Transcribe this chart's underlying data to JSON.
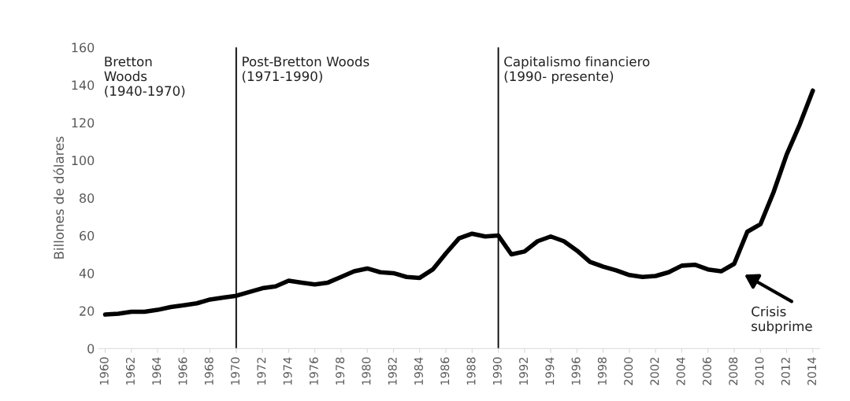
{
  "chart_data": {
    "type": "line",
    "ylabel": "Billones de dólares",
    "x": [
      1960,
      1961,
      1962,
      1963,
      1964,
      1965,
      1966,
      1967,
      1968,
      1969,
      1970,
      1971,
      1972,
      1973,
      1974,
      1975,
      1976,
      1977,
      1978,
      1979,
      1980,
      1981,
      1982,
      1983,
      1984,
      1985,
      1986,
      1987,
      1988,
      1989,
      1990,
      1991,
      1992,
      1993,
      1994,
      1995,
      1996,
      1997,
      1998,
      1999,
      2000,
      2001,
      2002,
      2003,
      2004,
      2005,
      2006,
      2007,
      2008,
      2009,
      2010,
      2011,
      2012,
      2013,
      2014
    ],
    "series": [
      {
        "color": "#000000",
        "values": [
          18,
          18.5,
          19.5,
          19.5,
          20.5,
          22,
          23,
          24,
          26,
          27,
          28,
          30,
          32,
          33,
          36,
          35,
          34,
          35,
          38,
          41,
          42.5,
          40.5,
          40,
          38,
          37.5,
          42,
          50.5,
          58.5,
          61,
          59.5,
          60,
          50,
          51.5,
          57,
          59.5,
          57,
          52,
          46,
          43.5,
          41.5,
          39,
          38,
          38.5,
          40.5,
          44,
          44.5,
          42,
          41,
          45,
          62,
          66,
          83,
          103,
          119,
          137
        ]
      }
    ],
    "xlim": [
      1959.5,
      2014.5
    ],
    "xticks": [
      1960,
      1962,
      1964,
      1966,
      1968,
      1970,
      1972,
      1974,
      1976,
      1978,
      1980,
      1982,
      1984,
      1986,
      1988,
      1990,
      1992,
      1994,
      1996,
      1998,
      2000,
      2002,
      2004,
      2006,
      2008,
      2010,
      2012,
      2014
    ],
    "ylim": [
      0,
      160
    ],
    "yticks": [
      0,
      20,
      40,
      60,
      80,
      100,
      120,
      140,
      160
    ],
    "grid": false,
    "legend": false,
    "marker": "none",
    "line_style": "solid",
    "ref_lines": [
      {
        "axis": "x",
        "value": 1970,
        "color": "#000000"
      },
      {
        "axis": "x",
        "value": 1990,
        "color": "#000000"
      }
    ],
    "annotations": [
      "Bretton\nWoods\n(1940-1970)",
      "Post-Bretton Woods\n(1971-1990)",
      "Capitalismo financiero\n(1990- presente)",
      "Crisis\nsubprime"
    ]
  }
}
